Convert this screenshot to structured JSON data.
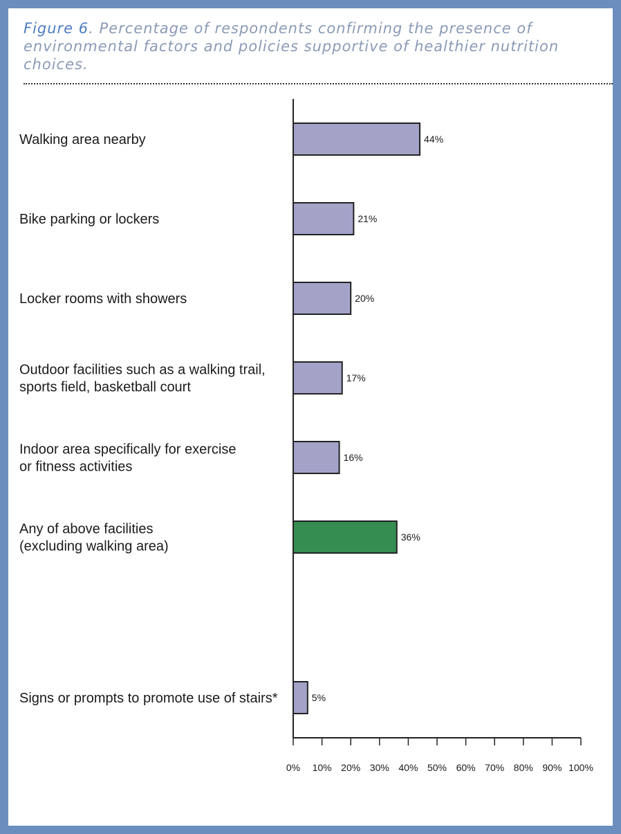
{
  "title": {
    "figure_label": "Figure 6",
    "text": ". Percentage of respondents confirming the presence of environmental factors and policies supportive of healthier nutrition choices."
  },
  "colors": {
    "frame": "#6b8ebf",
    "bar_default": "#a3a3c8",
    "bar_highlight": "#358d52",
    "bar_stroke": "#222222",
    "axis": "#222222"
  },
  "chart_data": {
    "type": "bar",
    "orientation": "horizontal",
    "categories": [
      [
        "Walking area nearby"
      ],
      [
        "Bike parking or lockers"
      ],
      [
        "Locker rooms with showers"
      ],
      [
        "Outdoor facilities such as a walking trail,",
        "sports field, basketball court"
      ],
      [
        "Indoor area specifically for exercise",
        "or fitness activities"
      ],
      [
        "Any of above facilities",
        "(excluding walking area)"
      ],
      [
        "Signs or prompts to promote use of stairs*"
      ]
    ],
    "values": [
      44,
      21,
      20,
      17,
      16,
      36,
      5
    ],
    "value_labels": [
      "44%",
      "21%",
      "20%",
      "17%",
      "16%",
      "36%",
      "5%"
    ],
    "highlight_index": 5,
    "xlim": [
      0,
      100
    ],
    "x_ticks": [
      "0%",
      "10%",
      "20%",
      "30%",
      "40%",
      "50%",
      "60%",
      "70%",
      "80%",
      "90%",
      "100%"
    ],
    "xlabel": "",
    "ylabel": "",
    "grid": false,
    "legend": "none"
  }
}
